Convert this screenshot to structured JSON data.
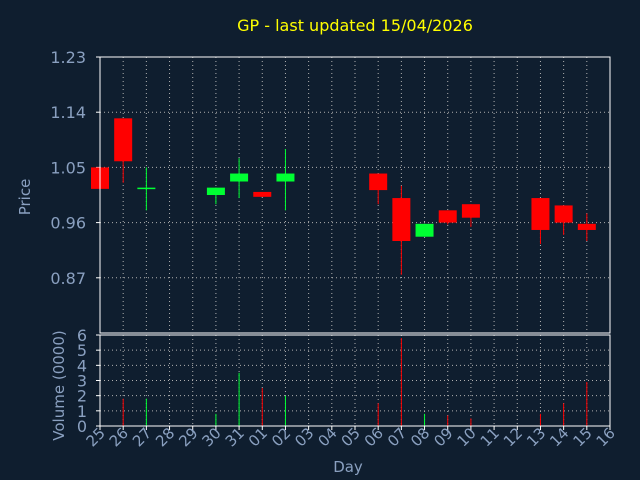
{
  "chart_data": [
    {
      "type": "candlestick",
      "title": "GP - last updated 15/04/2026",
      "ylabel": "Price",
      "xlabel": "Day",
      "ylim": [
        0.78,
        1.23
      ],
      "yticks": [
        "1.23",
        "1.14",
        "1.05",
        "0.96",
        "0.87"
      ],
      "ytick_values": [
        1.23,
        1.14,
        1.05,
        0.96,
        0.87
      ],
      "grid": true,
      "categories": [
        "25",
        "26",
        "27",
        "28",
        "29",
        "30",
        "31",
        "01",
        "02",
        "03",
        "04",
        "05",
        "06",
        "07",
        "08",
        "09",
        "10",
        "11",
        "12",
        "13",
        "14",
        "15",
        "16"
      ],
      "candles": [
        {
          "day": "25",
          "open": 1.05,
          "close": 1.015,
          "high": 1.05,
          "low": 1.015
        },
        {
          "day": "26",
          "open": 1.13,
          "close": 1.06,
          "high": 1.13,
          "low": 1.025
        },
        {
          "day": "27",
          "open": 1.015,
          "close": 1.017,
          "high": 1.05,
          "low": 0.98
        },
        {
          "day": "30",
          "open": 1.005,
          "close": 1.017,
          "high": 1.017,
          "low": 0.99
        },
        {
          "day": "31",
          "open": 1.027,
          "close": 1.04,
          "high": 1.065,
          "low": 1.0
        },
        {
          "day": "01",
          "open": 1.01,
          "close": 1.002,
          "high": 1.01,
          "low": 1.002
        },
        {
          "day": "02",
          "open": 1.027,
          "close": 1.04,
          "high": 1.08,
          "low": 0.98
        },
        {
          "day": "06",
          "open": 1.04,
          "close": 1.013,
          "high": 1.04,
          "low": 0.99
        },
        {
          "day": "07",
          "open": 1.0,
          "close": 0.93,
          "high": 1.02,
          "low": 0.875
        },
        {
          "day": "08",
          "open": 0.937,
          "close": 0.958,
          "high": 0.958,
          "low": 0.937
        },
        {
          "day": "09",
          "open": 0.98,
          "close": 0.96,
          "high": 0.98,
          "low": 0.957
        },
        {
          "day": "10",
          "open": 0.99,
          "close": 0.968,
          "high": 0.99,
          "low": 0.953
        },
        {
          "day": "13",
          "open": 1.0,
          "close": 0.948,
          "high": 1.0,
          "low": 0.925
        },
        {
          "day": "14",
          "open": 0.988,
          "close": 0.96,
          "high": 0.988,
          "low": 0.94
        },
        {
          "day": "15",
          "open": 0.958,
          "close": 0.948,
          "high": 0.975,
          "low": 0.93
        }
      ],
      "up_color": "#00ff33",
      "down_color": "#ff0000"
    },
    {
      "type": "bar",
      "ylabel": "Volume (0000)",
      "xlabel": "Day",
      "ylim": [
        0,
        6
      ],
      "yticks": [
        "6",
        "5",
        "4",
        "3",
        "2",
        "1",
        "0"
      ],
      "ytick_values": [
        6,
        5,
        4,
        3,
        2,
        1,
        0
      ],
      "categories": [
        "25",
        "26",
        "27",
        "28",
        "29",
        "30",
        "31",
        "01",
        "02",
        "03",
        "04",
        "05",
        "06",
        "07",
        "08",
        "09",
        "10",
        "11",
        "12",
        "13",
        "14",
        "15",
        "16"
      ],
      "volumes": [
        {
          "day": "26",
          "value": 1.8,
          "direction": "down"
        },
        {
          "day": "27",
          "value": 1.8,
          "direction": "up"
        },
        {
          "day": "30",
          "value": 0.8,
          "direction": "up"
        },
        {
          "day": "31",
          "value": 3.5,
          "direction": "up"
        },
        {
          "day": "01",
          "value": 2.5,
          "direction": "down"
        },
        {
          "day": "02",
          "value": 2.0,
          "direction": "up"
        },
        {
          "day": "06",
          "value": 1.5,
          "direction": "down"
        },
        {
          "day": "07",
          "value": 5.8,
          "direction": "down"
        },
        {
          "day": "08",
          "value": 0.8,
          "direction": "up"
        },
        {
          "day": "09",
          "value": 0.7,
          "direction": "down"
        },
        {
          "day": "10",
          "value": 0.5,
          "direction": "down"
        },
        {
          "day": "13",
          "value": 0.8,
          "direction": "down"
        },
        {
          "day": "14",
          "value": 1.5,
          "direction": "down"
        },
        {
          "day": "15",
          "value": 2.9,
          "direction": "down"
        }
      ]
    }
  ],
  "colors": {
    "background": "#0f1e2f",
    "axis": "#ffffff",
    "grid": "#b0b0b0",
    "tick_label": "#8aa0c0",
    "title": "#ffff00",
    "up": "#00ff33",
    "down": "#ff0000"
  }
}
